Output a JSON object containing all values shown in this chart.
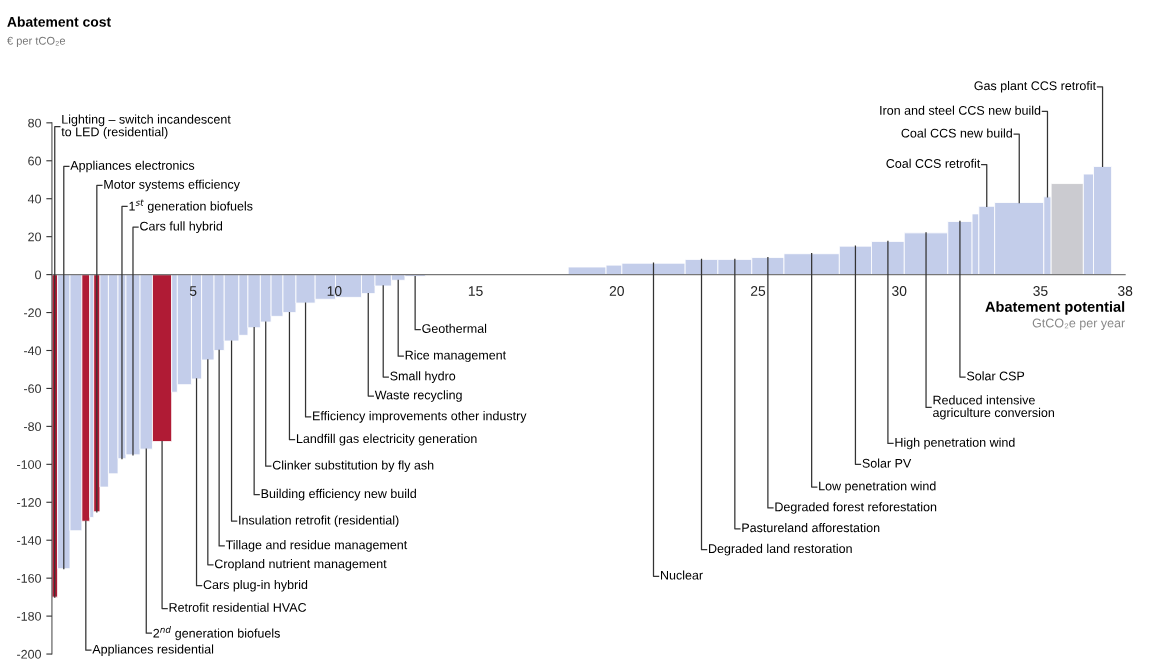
{
  "chart_data": {
    "type": "bar",
    "title": "Abatement cost",
    "subtitle": "€ per tCO₂e",
    "xlabel": "Abatement potential",
    "x": [
      0.1,
      0.42,
      0.85,
      1.2,
      1.41,
      1.59,
      1.85,
      2.17,
      2.48,
      2.87,
      3.34,
      3.9,
      4.34,
      4.69,
      5.12,
      5.52,
      5.92,
      6.36,
      6.78,
      7.16,
      7.57,
      7.97,
      8.41,
      8.98,
      9.68,
      10.5,
      11.2,
      11.73,
      12.26,
      12.86,
      15.75,
      18.95,
      19.9,
      21.3,
      23.0,
      24.18,
      25.35,
      26.9,
      28.45,
      29.6,
      30.95,
      32.15,
      32.7,
      33.1,
      34.25,
      35.25,
      35.95,
      36.7,
      37.2
    ],
    "values": [
      -170,
      -155,
      -135,
      -130,
      -128,
      -125,
      -112,
      -105,
      -97,
      -95,
      -92,
      -88,
      -62,
      -58,
      -55,
      -45,
      -40,
      -35,
      -32,
      -28,
      -25,
      -22,
      -20,
      -15,
      -13,
      -12,
      -10,
      -6,
      -3,
      -1,
      null,
      4,
      5,
      6,
      8,
      8,
      9,
      11,
      15,
      17.5,
      22,
      28,
      32,
      36,
      38,
      41,
      48,
      53,
      57
    ],
    "colors": [
      "#b01b35",
      "#c3cdea",
      "#c3cdea",
      "#b01b35",
      "#c3cdea",
      "#b01b35",
      "#c3cdea",
      "#c3cdea",
      "#c3cdea",
      "#c3cdea",
      "#c3cdea",
      "#b01b35",
      "#c3cdea",
      "#c3cdea",
      "#c3cdea",
      "#c3cdea",
      "#c3cdea",
      "#c3cdea",
      "#c3cdea",
      "#c3cdea",
      "#c3cdea",
      "#c3cdea",
      "#c3cdea",
      "#c3cdea",
      "#c3cdea",
      "#c3cdea",
      "#c3cdea",
      "#c3cdea",
      "#c3cdea",
      "#c3cdea",
      "#c3cdea",
      "#c3cdea",
      "#c3cdea",
      "#c3cdea",
      "#c3cdea",
      "#c3cdea",
      "#c3cdea",
      "#c3cdea",
      "#c3cdea",
      "#c3cdea",
      "#c3cdea",
      "#c3cdea",
      "#c3cdea",
      "#c3cdea",
      "#c3cdea",
      "#c3cdea",
      "#cbcbd0",
      "#c3cdea",
      "#c3cdea"
    ],
    "xlim": [
      0,
      38
    ],
    "xticks": [
      5,
      10,
      15,
      20,
      25,
      30,
      35,
      38
    ],
    "ylim": [
      -200,
      80
    ],
    "yticks": [
      -200,
      -180,
      -160,
      -140,
      -120,
      -100,
      -80,
      -60,
      -40,
      -20,
      0,
      20,
      40,
      60,
      80
    ],
    "grid": false,
    "legend": false,
    "annotations": [
      {
        "text": "Lighting – switch incandescent\nto LED (residential)",
        "x": 0.1,
        "y": -170
      },
      {
        "text": "Appliances electronics",
        "x": 0.42,
        "y": -155
      },
      {
        "text": "Motor systems efficiency",
        "x": 1.59,
        "y": -125
      },
      {
        "text": "1$^{st}$ generation biofuels",
        "x": 2.48,
        "y": -97
      },
      {
        "text": "Cars full hybrid",
        "x": 2.87,
        "y": -95
      },
      {
        "text": "Appliances residential",
        "x": 1.2,
        "y": -130
      },
      {
        "text": "2$^{nd}$ generation biofuels",
        "x": 3.34,
        "y": -92
      },
      {
        "text": "Retrofit residential HVAC",
        "x": 3.9,
        "y": -88
      },
      {
        "text": "Cars plug-in hybrid",
        "x": 5.12,
        "y": -55
      },
      {
        "text": "Cropland nutrient management",
        "x": 5.52,
        "y": -45
      },
      {
        "text": "Tillage and residue management",
        "x": 5.92,
        "y": -40
      },
      {
        "text": "Insulation retrofit (residential)",
        "x": 6.36,
        "y": -35
      },
      {
        "text": "Building efficiency new build",
        "x": 7.16,
        "y": -28
      },
      {
        "text": "Clinker substitution by fly ash",
        "x": 7.57,
        "y": -25
      },
      {
        "text": "Landfill gas electricity generation",
        "x": 8.41,
        "y": -20
      },
      {
        "text": "Efficiency improvements other industry",
        "x": 8.98,
        "y": -15
      },
      {
        "text": "Waste recycling",
        "x": 11.2,
        "y": -10
      },
      {
        "text": "Small hydro",
        "x": 11.73,
        "y": -6
      },
      {
        "text": "Rice management",
        "x": 12.26,
        "y": -3
      },
      {
        "text": "Geothermal",
        "x": 12.86,
        "y": -1
      },
      {
        "text": "Nuclear",
        "x": 21.3,
        "y": 6
      },
      {
        "text": "Degraded land restoration",
        "x": 23.0,
        "y": 8
      },
      {
        "text": "Pastureland afforestation",
        "x": 24.18,
        "y": 8
      },
      {
        "text": "Degraded forest reforestation",
        "x": 25.35,
        "y": 9
      },
      {
        "text": "Low penetration wind",
        "x": 26.9,
        "y": 11
      },
      {
        "text": "Solar PV",
        "x": 28.45,
        "y": 15
      },
      {
        "text": "High penetration wind",
        "x": 29.6,
        "y": 17.5
      },
      {
        "text": "Reduced intensive\nagriculture conversion",
        "x": 30.95,
        "y": 22
      },
      {
        "text": "Solar CSP",
        "x": 32.15,
        "y": 28
      },
      {
        "text": "Coal CCS retrofit",
        "x": 33.1,
        "y": 36
      },
      {
        "text": "Coal CCS new build",
        "x": 34.25,
        "y": 38
      },
      {
        "text": "Iron and steel CCS new build",
        "x": 35.25,
        "y": 41
      },
      {
        "text": "Gas plant CCS retrofit",
        "x": 37.2,
        "y": 57
      },
      "GtCO₂e per year"
    ]
  }
}
